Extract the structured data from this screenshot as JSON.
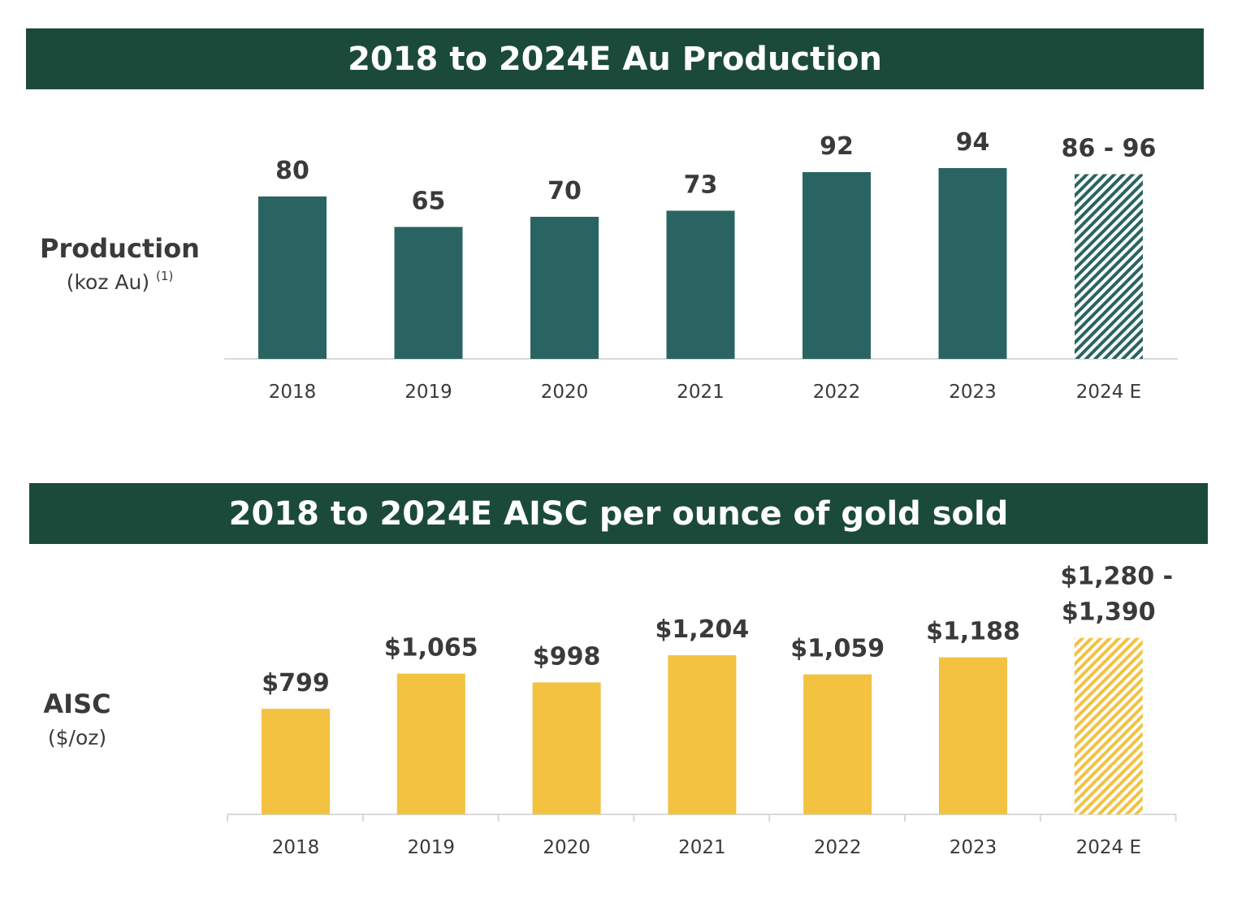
{
  "colors": {
    "banner": "#1c4a3a",
    "production_bar": "#2a6462",
    "aisc_bar": "#f2c240",
    "axis": "#d9d9d9"
  },
  "chart_data": [
    {
      "type": "bar",
      "title": "2018 to 2024E Au Production",
      "ylabel": "Production",
      "ylabel_sub": "(koz Au)",
      "ylabel_note": "(1)",
      "categories": [
        "2018",
        "2019",
        "2020",
        "2021",
        "2022",
        "2023",
        "2024 E"
      ],
      "values": [
        80,
        65,
        70,
        73,
        92,
        94,
        91
      ],
      "data_labels": [
        "80",
        "65",
        "70",
        "73",
        "92",
        "94",
        "86 - 96"
      ],
      "estimate_range": {
        "category": "2024 E",
        "low": 86,
        "high": 96
      },
      "hatched_categories": [
        "2024 E"
      ],
      "ylim": [
        0,
        100
      ],
      "grid": false,
      "legend": "none"
    },
    {
      "type": "bar",
      "title": "2018 to 2024E AISC per ounce of gold sold",
      "ylabel": "AISC",
      "ylabel_sub": "($/oz)",
      "categories": [
        "2018",
        "2019",
        "2020",
        "2021",
        "2022",
        "2023",
        "2024 E"
      ],
      "values": [
        799,
        1065,
        998,
        1204,
        1059,
        1188,
        1335
      ],
      "data_labels": [
        "$799",
        "$1,065",
        "$998",
        "$1,204",
        "$1,059",
        "$1,188",
        "$1,280  -|$1,390"
      ],
      "estimate_range": {
        "category": "2024 E",
        "low": 1280,
        "high": 1390
      },
      "hatched_categories": [
        "2024 E"
      ],
      "ylim": [
        0,
        1500
      ],
      "grid": false,
      "legend": "none"
    }
  ]
}
